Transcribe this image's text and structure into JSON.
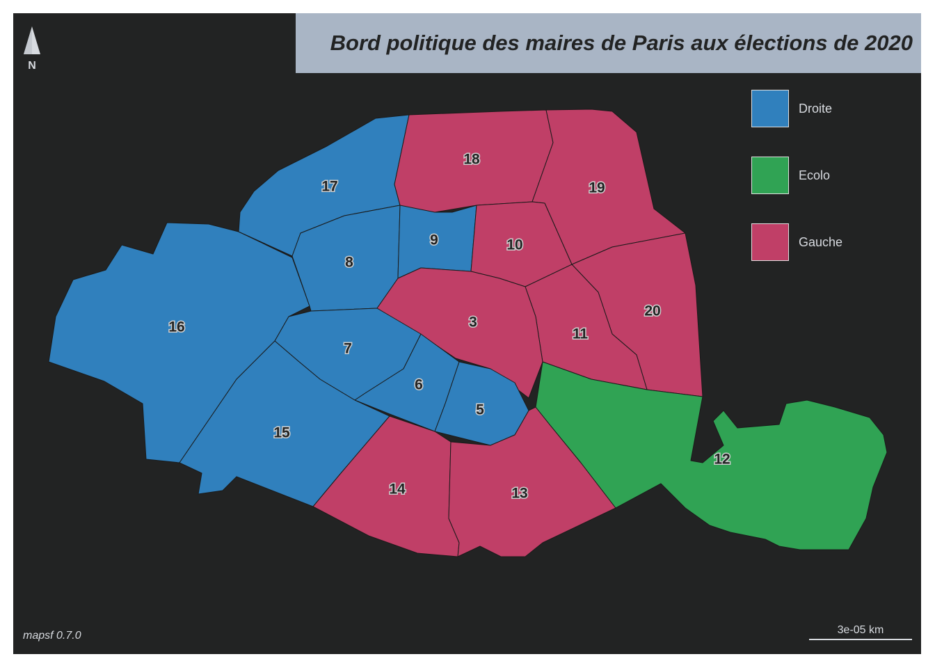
{
  "title": "Bord politique des maires de Paris aux élections de 2020",
  "north_arrow": {
    "label": "N"
  },
  "credits": "mapsf 0.7.0",
  "scale": {
    "label": "3e-05 km"
  },
  "legend": {
    "items": [
      {
        "label": "Droite",
        "color": "#3080bd"
      },
      {
        "label": "Ecolo",
        "color": "#30a354"
      },
      {
        "label": "Gauche",
        "color": "#c03f67"
      }
    ]
  },
  "colors": {
    "background": "#222323",
    "title_background": "#a9b5c5",
    "border": "#1a1a1a"
  },
  "arrondissements": [
    {
      "id": "3",
      "label": "3",
      "party": "Gauche"
    },
    {
      "id": "5",
      "label": "5",
      "party": "Droite"
    },
    {
      "id": "6",
      "label": "6",
      "party": "Droite"
    },
    {
      "id": "7",
      "label": "7",
      "party": "Droite"
    },
    {
      "id": "8",
      "label": "8",
      "party": "Droite"
    },
    {
      "id": "9",
      "label": "9",
      "party": "Droite"
    },
    {
      "id": "10",
      "label": "10",
      "party": "Gauche"
    },
    {
      "id": "11",
      "label": "11",
      "party": "Gauche"
    },
    {
      "id": "12",
      "label": "12",
      "party": "Ecolo"
    },
    {
      "id": "13",
      "label": "13",
      "party": "Gauche"
    },
    {
      "id": "14",
      "label": "14",
      "party": "Gauche"
    },
    {
      "id": "15",
      "label": "15",
      "party": "Droite"
    },
    {
      "id": "16",
      "label": "16",
      "party": "Droite"
    },
    {
      "id": "17",
      "label": "17",
      "party": "Droite"
    },
    {
      "id": "18",
      "label": "18",
      "party": "Gauche"
    },
    {
      "id": "19",
      "label": "19",
      "party": "Gauche"
    },
    {
      "id": "20",
      "label": "20",
      "party": "Gauche"
    }
  ]
}
